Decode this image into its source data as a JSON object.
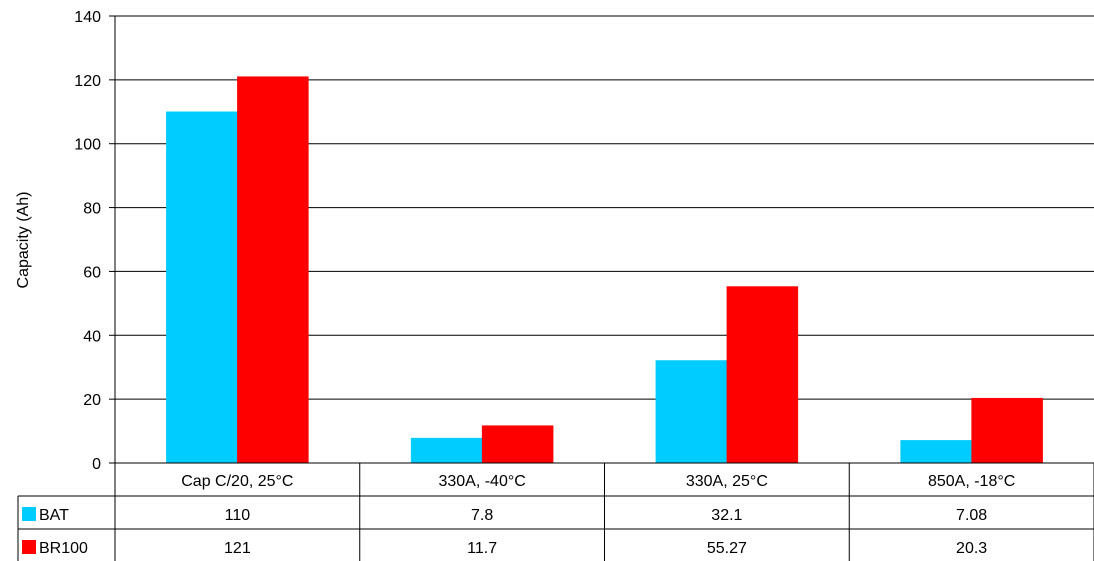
{
  "chart_data": {
    "type": "bar",
    "ylabel": "Capacity (Ah)",
    "ylim": [
      0,
      140
    ],
    "yticks": [
      0,
      20,
      40,
      60,
      80,
      100,
      120,
      140
    ],
    "grid": true,
    "legend": "data-table",
    "categories": [
      "Cap C/20, 25°C",
      "330A, -40°C",
      "330A, 25°C",
      "850A, -18°C"
    ],
    "series": [
      {
        "name": "BAT",
        "color": "#00ccff",
        "values": [
          110,
          7.8,
          32.1,
          7.08
        ],
        "labels": [
          "110",
          "7.8",
          "32.1",
          "7.08"
        ]
      },
      {
        "name": "BR100",
        "color": "#ff0000",
        "values": [
          121,
          11.7,
          55.27,
          20.3
        ],
        "labels": [
          "121",
          "11.7",
          "55.27",
          "20.3"
        ]
      }
    ]
  }
}
